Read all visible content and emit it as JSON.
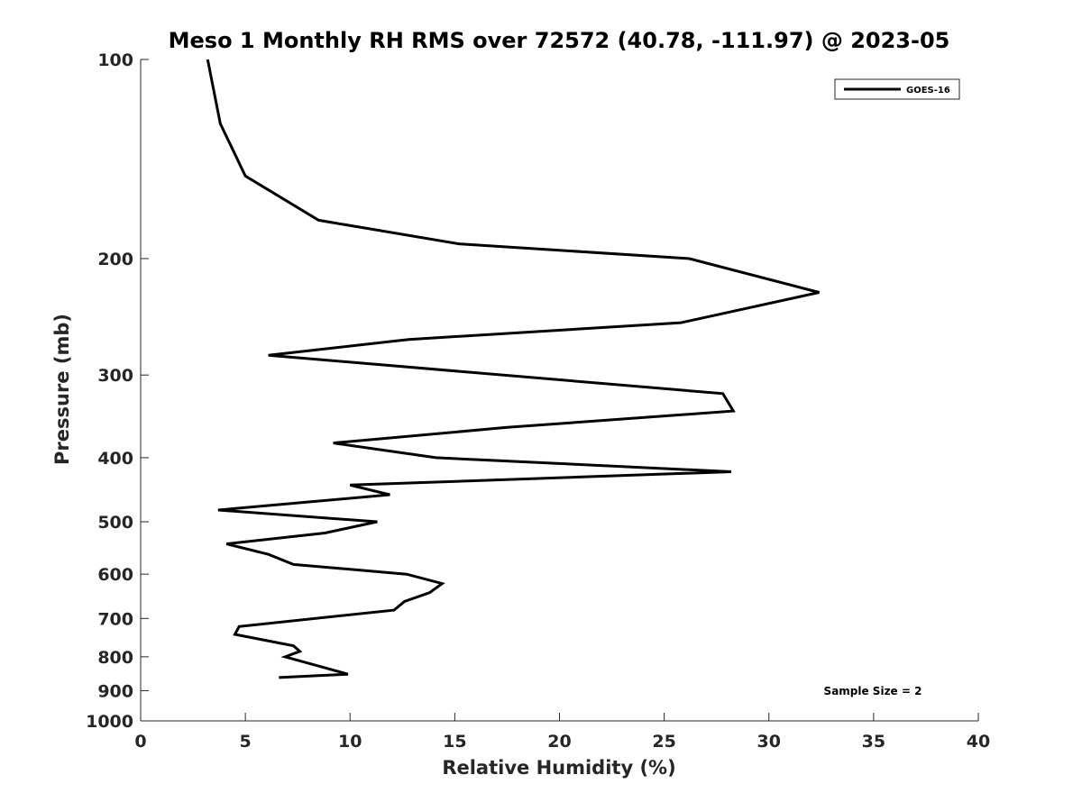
{
  "chart_data": {
    "type": "line",
    "title": "Meso 1 Monthly RH RMS over 72572 (40.78, -111.97) @ 2023-05",
    "xlabel": "Relative Humidity (%)",
    "ylabel": "Pressure (mb)",
    "xlim": [
      0,
      40
    ],
    "ylim": [
      100,
      1000
    ],
    "y_scale": "log",
    "y_reversed": true,
    "grid": false,
    "legend_position": "top-right",
    "x_ticks": [
      0,
      5,
      10,
      15,
      20,
      25,
      30,
      35,
      40
    ],
    "y_ticks": [
      100,
      200,
      300,
      400,
      500,
      600,
      700,
      800,
      900,
      1000
    ],
    "series": [
      {
        "name": "GOES-16",
        "color": "#000000",
        "points": [
          {
            "p": 100,
            "rh": 3.2
          },
          {
            "p": 125,
            "rh": 3.8
          },
          {
            "p": 150,
            "rh": 5.0
          },
          {
            "p": 175,
            "rh": 8.5
          },
          {
            "p": 190,
            "rh": 15.2
          },
          {
            "p": 200,
            "rh": 26.2
          },
          {
            "p": 225,
            "rh": 32.4
          },
          {
            "p": 250,
            "rh": 25.8
          },
          {
            "p": 265,
            "rh": 12.8
          },
          {
            "p": 280,
            "rh": 6.1
          },
          {
            "p": 320,
            "rh": 27.8
          },
          {
            "p": 340,
            "rh": 28.3
          },
          {
            "p": 360,
            "rh": 17.5
          },
          {
            "p": 380,
            "rh": 9.2
          },
          {
            "p": 400,
            "rh": 14.1
          },
          {
            "p": 420,
            "rh": 28.2
          },
          {
            "p": 440,
            "rh": 10.0
          },
          {
            "p": 455,
            "rh": 11.9
          },
          {
            "p": 480,
            "rh": 3.7
          },
          {
            "p": 500,
            "rh": 11.3
          },
          {
            "p": 520,
            "rh": 8.8
          },
          {
            "p": 540,
            "rh": 4.1
          },
          {
            "p": 560,
            "rh": 6.1
          },
          {
            "p": 580,
            "rh": 7.3
          },
          {
            "p": 600,
            "rh": 12.7
          },
          {
            "p": 620,
            "rh": 14.4
          },
          {
            "p": 640,
            "rh": 13.8
          },
          {
            "p": 660,
            "rh": 12.6
          },
          {
            "p": 680,
            "rh": 12.1
          },
          {
            "p": 720,
            "rh": 4.7
          },
          {
            "p": 740,
            "rh": 4.5
          },
          {
            "p": 770,
            "rh": 7.3
          },
          {
            "p": 785,
            "rh": 7.6
          },
          {
            "p": 800,
            "rh": 6.9
          },
          {
            "p": 850,
            "rh": 9.9
          },
          {
            "p": 860,
            "rh": 6.6
          }
        ]
      }
    ],
    "annotations": [
      {
        "text": "Sample Size = 2",
        "position": "bottom-right"
      }
    ]
  }
}
